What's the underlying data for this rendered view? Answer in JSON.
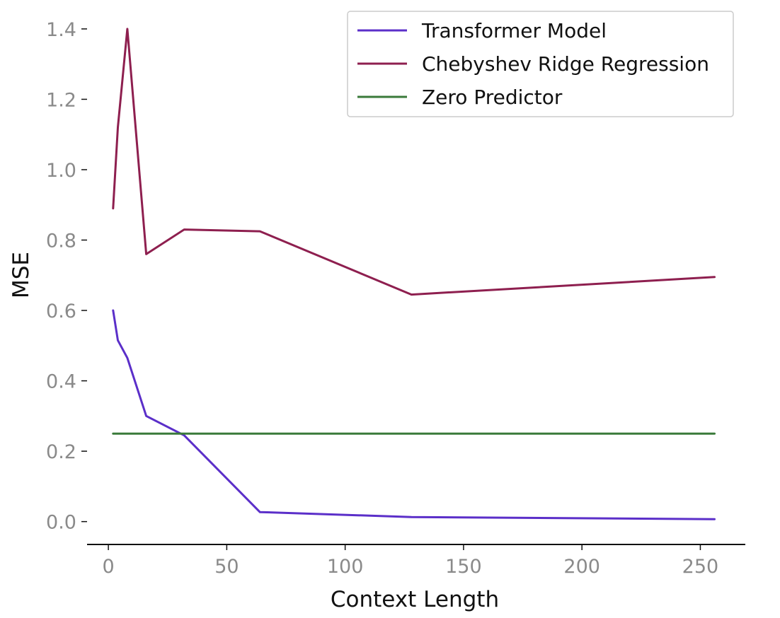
{
  "chart_data": {
    "type": "line",
    "title": "",
    "xlabel": "Context Length",
    "ylabel": "MSE",
    "xlim": [
      -9,
      269
    ],
    "ylim": [
      -0.065,
      1.45
    ],
    "x_ticks": [
      0,
      50,
      100,
      150,
      200,
      250
    ],
    "x_tick_labels": [
      "0",
      "50",
      "100",
      "150",
      "200",
      "250"
    ],
    "y_ticks": [
      0.0,
      0.2,
      0.4,
      0.6,
      0.8,
      1.0,
      1.2,
      1.4
    ],
    "y_tick_labels": [
      "0.0",
      "0.2",
      "0.4",
      "0.6",
      "0.8",
      "1.0",
      "1.2",
      "1.4"
    ],
    "grid": false,
    "legend_position": "top-right",
    "series": [
      {
        "name": "Transformer Model",
        "color": "#5b2fc9",
        "x": [
          2,
          4,
          8,
          16,
          32,
          64,
          128,
          256
        ],
        "y": [
          0.6,
          0.515,
          0.465,
          0.3,
          0.245,
          0.027,
          0.013,
          0.007
        ]
      },
      {
        "name": "Chebyshev Ridge Regression",
        "color": "#8e1f4f",
        "x": [
          2,
          4,
          8,
          16,
          32,
          64,
          128,
          256
        ],
        "y": [
          0.89,
          1.12,
          1.4,
          0.76,
          0.83,
          0.825,
          0.645,
          0.695
        ]
      },
      {
        "name": "Zero Predictor",
        "color": "#3a7a3a",
        "x": [
          2,
          256
        ],
        "y": [
          0.25,
          0.25
        ]
      }
    ]
  }
}
